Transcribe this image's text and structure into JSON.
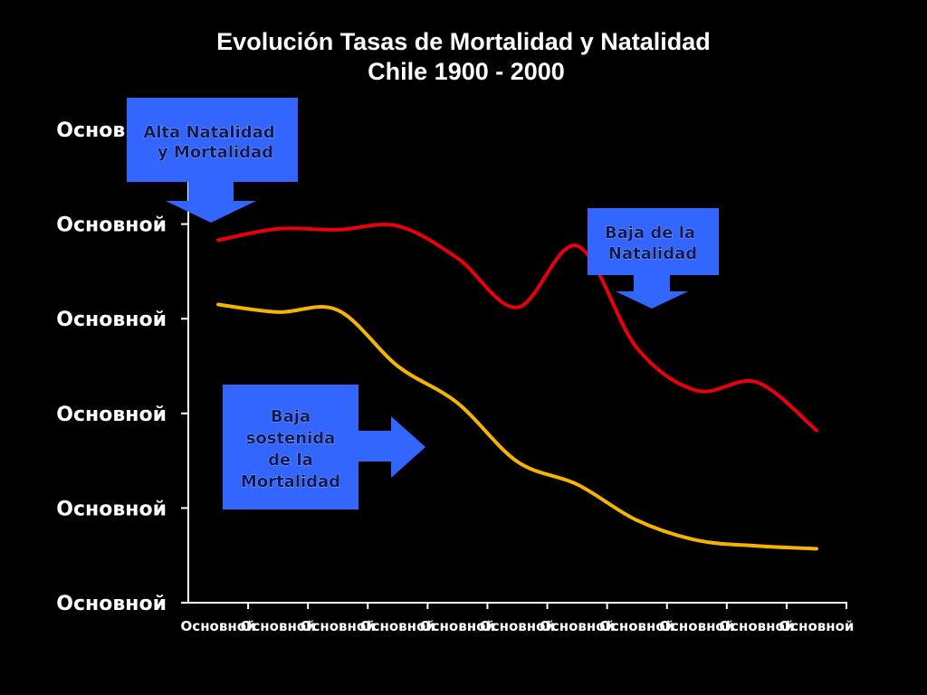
{
  "chart_data": {
    "type": "line",
    "title": "Evolución Tasas de Mortalidad y Natalidad",
    "subtitle": "Chile 1900 - 2000",
    "categories": [
      "Основной",
      "Основной",
      "Основной",
      "Основной",
      "Основной",
      "Основной",
      "Основной",
      "Основной",
      "Основной",
      "Основной",
      "Основной"
    ],
    "series": [
      {
        "color": "#e8000b",
        "values": [
          38.3,
          39.5,
          39.4,
          39.8,
          36.4,
          31.2,
          37.7,
          26.9,
          22.4,
          23.3,
          18.2
        ]
      },
      {
        "color": "#f5b400",
        "values": [
          31.5,
          30.7,
          30.9,
          25.0,
          21.1,
          14.9,
          12.5,
          8.7,
          6.6,
          6.0,
          5.7
        ]
      }
    ],
    "ylim": [
      0,
      50
    ],
    "yticks": [
      {
        "value": 0,
        "label": "Основной"
      },
      {
        "value": 10,
        "label": "Основной"
      },
      {
        "value": 20,
        "label": "Основной"
      },
      {
        "value": 30,
        "label": "Основной"
      },
      {
        "value": 40,
        "label": "Основной"
      },
      {
        "value": 50,
        "label": "Основной"
      }
    ],
    "annotations": [
      {
        "lines": [
          "Alta Natalidad",
          "y  Mortalidad"
        ]
      },
      {
        "lines": [
          "Baja de la",
          "Natalidad"
        ]
      },
      {
        "lines": [
          "Baja",
          "sostenida",
          "de la",
          "Mortalidad"
        ]
      }
    ]
  }
}
